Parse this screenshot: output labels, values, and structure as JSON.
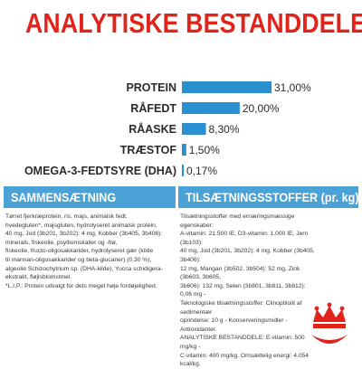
{
  "title": "ANALYTISKE BESTANDDELE",
  "colors": {
    "title": "#e2231a",
    "bar": "#2a8fcf",
    "header": "#4aa2d6",
    "logo": "#e2231a"
  },
  "chart_data": {
    "type": "bar",
    "orientation": "horizontal",
    "categories": [
      "PROTEIN",
      "RÅFEDT",
      "RÅASKE",
      "TRÆSTOF",
      "OMEGA-3-FEDTSYRE (DHA)"
    ],
    "values": [
      31.0,
      20.0,
      8.3,
      1.5,
      0.17
    ],
    "value_labels": [
      "31,00%",
      "20,00%",
      "8,30%",
      "1,50%",
      "0,17%"
    ],
    "unit": "%",
    "xlim": [
      0,
      31
    ],
    "grid": false,
    "legend": "none"
  },
  "ingredients": {
    "header": "SAMMENSÆTNING",
    "text": "Tørret fjerkræprotein, ris, majs, animalsk fedt,\nhvedegluten*, majsgluten, hydrolyseret animalsk protein,\n40 mg, Jod (3b201, 3b202): 4 mg, Kobber (3b405, 3b406):\nminerals, fiskeolie, psylliumskaller og -frø,\nfiskeolie, fructo-oligosakkarider, hydrolyseret gær (kilde\ntil mannan-oligosakkarider og beta-glucaner) (0,30 %),\nalgeolie Schizochytrium sp. (DHA-kilde), Yucca schidigera-\nekstrakt, fløjlsblomstmel.\n*L.I.P.: Protein udvalgt for dets meget høje fordøjelighed."
  },
  "additives": {
    "header": "TILSÆTNINGSSTOFFER (pr. kg)",
    "text": "Tilsætningsstoffer med ernæringsmæssige egenskaber:\nA-vitamin: 21.500 IE, D3-vitamin: 1.000 IE, Jern (3b103):\n40 mg, Jod (3b201, 3b202): 4 mg, Kobber (3b405, 3b406):\n12 mg, Mangan (3b502, 3b504): 52 mg, Zink (3b603, 3b605,\n3b606): 132 mg, Selen (3b801, 3b811, 3b812): 0,06 mg -\nTeknologiske tilsætningsstoffer: Clinoptilolit af sedimentær\noprindelse: 10 g - Konserveringsmidler - Antioxidanter.\nANALYTISKE BESTANDDELE: E-vitamin: 500 mg/kg -\nC-vitamin: 400 mg/kg. Omsættelig energi: 4.054 kcal/kg."
  },
  "logo": {
    "icon": "royal-canin-crown-logo"
  }
}
